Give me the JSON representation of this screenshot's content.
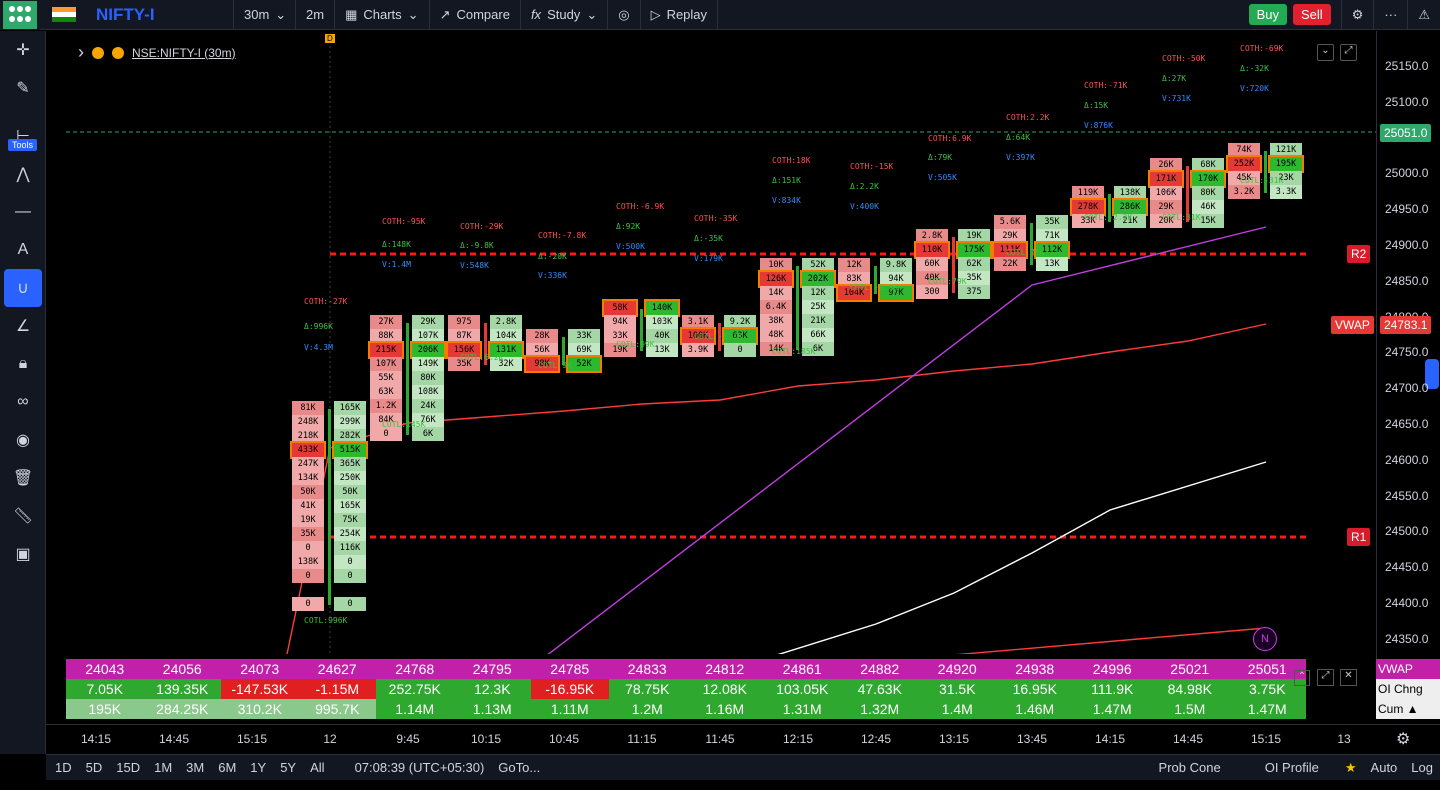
{
  "topbar": {
    "symbol": "NIFTY-I",
    "interval": "30m",
    "replay_interval": "2m",
    "charts_label": "Charts",
    "compare_label": "Compare",
    "study_label": "Study",
    "replay_label": "Replay",
    "buy_label": "Buy",
    "sell_label": "Sell"
  },
  "left_toolbar": {
    "tools_label": "Tools"
  },
  "legend": {
    "symbol_label": "NSE:NIFTY-I (30m)",
    "marker": "D"
  },
  "price_axis": {
    "labels": [
      "25150.0",
      "25100.0",
      "25050.0",
      "25000.0",
      "24950.0",
      "24900.0",
      "24850.0",
      "24800.0",
      "24750.0",
      "24700.0",
      "24650.0",
      "24600.0",
      "24550.0",
      "24500.0",
      "24450.0",
      "24400.0",
      "24350.0"
    ],
    "last_price": "25051.0",
    "vwap_tag": "VWAP",
    "vwap_price": "24783.1",
    "r2_tag": "R2",
    "r1_tag": "R1",
    "n_badge": "N"
  },
  "annotations": [
    {
      "coth": "COTH:-27K",
      "delta": "Δ:996K",
      "vol": "V:4.3M",
      "cotl": "COTL:996K"
    },
    {
      "coth": "COTH:-95K",
      "delta": "Δ:148K",
      "vol": "V:1.4M",
      "cotl": "COTL:145K"
    },
    {
      "coth": "COTH:-29K",
      "delta": "Δ:-9.8K",
      "vol": "V:548K",
      "cotl": "COTL:6.2K"
    },
    {
      "coth": "COTH:-7.8K",
      "delta": "Δ:-20K",
      "vol": "V:336K",
      "cotl": "COTL:9K"
    },
    {
      "coth": "COTH:-6.9K",
      "delta": "Δ:92K",
      "vol": "V:500K",
      "cotl": "COTL:99K"
    },
    {
      "coth": "COTH:-35K",
      "delta": "Δ:-35K",
      "vol": "V:179K",
      "cotl": "COTL:-5.1K"
    },
    {
      "coth": "COTH:18K",
      "delta": "Δ:151K",
      "vol": "V:834K",
      "cotl": "COTL:185K"
    },
    {
      "coth": "COTH:-15K",
      "delta": "Δ:2.2K",
      "vol": "V:400K",
      "cotl": "COTL:-3.1K"
    },
    {
      "coth": "COTH:6.9K",
      "delta": "Δ:79K",
      "vol": "V:505K",
      "cotl": "COTL:79K"
    },
    {
      "coth": "COTH:2.2K",
      "delta": "Δ:64K",
      "vol": "V:397K",
      "cotl": "COTL:75K"
    },
    {
      "coth": "COTH:-71K",
      "delta": "Δ:15K",
      "vol": "V:876K",
      "cotl": "COTL:-2.2K"
    },
    {
      "coth": "COTH:-50K",
      "delta": "Δ:27K",
      "vol": "V:731K",
      "cotl": "COTL:31K"
    },
    {
      "coth": "COTH:-69K",
      "delta": "Δ:-32K",
      "vol": "V:720K",
      "cotl": "COTL:-31K"
    }
  ],
  "footprints": [
    {
      "bid": [
        "81K",
        "248K",
        "218K",
        "433K",
        "247K",
        "134K",
        "50K",
        "41K",
        "19K",
        "35K",
        "0",
        "138K",
        "0",
        "",
        "0"
      ],
      "ask": [
        "165K",
        "299K",
        "282K",
        "515K",
        "365K",
        "250K",
        "50K",
        "165K",
        "75K",
        "254K",
        "116K",
        "0",
        "0",
        "",
        "0"
      ]
    },
    {
      "bid": [
        "27K",
        "88K",
        "215K",
        "107K",
        "55K",
        "63K",
        "1.2K",
        "84K",
        "0"
      ],
      "ask": [
        "29K",
        "107K",
        "206K",
        "149K",
        "80K",
        "108K",
        "24K",
        "76K",
        "6K"
      ]
    },
    {
      "bid": [
        "975",
        "87K",
        "156K",
        "35K"
      ],
      "ask": [
        "2.8K",
        "104K",
        "131K",
        "32K"
      ]
    },
    {
      "bid": [
        "28K",
        "56K",
        "98K"
      ],
      "ask": [
        "33K",
        "69K",
        "52K"
      ]
    },
    {
      "bid": [
        "58K",
        "94K",
        "33K",
        "19K"
      ],
      "ask": [
        "140K",
        "103K",
        "40K",
        "13K"
      ]
    },
    {
      "bid": [
        "3.1K",
        "100K",
        "3.9K"
      ],
      "ask": [
        "9.2K",
        "63K",
        "0"
      ]
    },
    {
      "bid": [
        "10K",
        "126K",
        "14K",
        "6.4K",
        "38K",
        "48K",
        "14K"
      ],
      "ask": [
        "52K",
        "202K",
        "12K",
        "25K",
        "21K",
        "66K",
        "6K"
      ]
    },
    {
      "bid": [
        "12K",
        "83K",
        "104K"
      ],
      "ask": [
        "9.8K",
        "94K",
        "97K"
      ]
    },
    {
      "bid": [
        "2.8K",
        "110K",
        "60K",
        "40K",
        "300"
      ],
      "ask": [
        "19K",
        "175K",
        "62K",
        "35K",
        "375"
      ]
    },
    {
      "bid": [
        "5.6K",
        "29K",
        "111K",
        "22K"
      ],
      "ask": [
        "35K",
        "71K",
        "112K",
        "13K"
      ]
    },
    {
      "bid": [
        "119K",
        "278K",
        "33K"
      ],
      "ask": [
        "138K",
        "286K",
        "21K"
      ]
    },
    {
      "bid": [
        "26K",
        "171K",
        "106K",
        "29K",
        "20K"
      ],
      "ask": [
        "68K",
        "170K",
        "80K",
        "46K",
        "15K"
      ]
    },
    {
      "bid": [
        "74K",
        "252K",
        "45K",
        "3.2K"
      ],
      "ask": [
        "121K",
        "195K",
        "23K",
        "3.3K"
      ]
    }
  ],
  "table": {
    "row1": [
      "24043",
      "24056",
      "24073",
      "24627",
      "24768",
      "24795",
      "24785",
      "24833",
      "24812",
      "24861",
      "24882",
      "24920",
      "24938",
      "24996",
      "25021",
      "25051"
    ],
    "row2": [
      "7.05K",
      "139.35K",
      "-147.53K",
      "-1.15M",
      "252.75K",
      "12.3K",
      "-16.95K",
      "78.75K",
      "12.08K",
      "103.05K",
      "47.63K",
      "31.5K",
      "16.95K",
      "111.9K",
      "84.98K",
      "3.75K"
    ],
    "row3": [
      "195K",
      "284.25K",
      "310.2K",
      "995.7K",
      "1.14M",
      "1.13M",
      "1.11M",
      "1.2M",
      "1.16M",
      "1.31M",
      "1.32M",
      "1.4M",
      "1.46M",
      "1.47M",
      "1.5M",
      "1.47M"
    ],
    "labels": [
      "VWAP",
      "OI Chng",
      "Cum ▲"
    ]
  },
  "time_axis": [
    "14:15",
    "14:45",
    "15:15",
    "12",
    "9:45",
    "10:15",
    "10:45",
    "11:15",
    "11:45",
    "12:15",
    "12:45",
    "13:15",
    "13:45",
    "14:15",
    "14:45",
    "15:15",
    "13"
  ],
  "bottombar": {
    "ranges": [
      "1D",
      "5D",
      "15D",
      "1M",
      "3M",
      "6M",
      "1Y",
      "5Y",
      "All"
    ],
    "clock": "07:08:39 (UTC+05:30)",
    "goto": "GoTo...",
    "prob_cone": "Prob Cone",
    "oi_profile": "OI Profile",
    "auto": "Auto",
    "log": "Log"
  },
  "colors": {
    "bg": "#000000",
    "toolbar": "#131722",
    "accent": "#2962ff",
    "buy": "#22ab54",
    "sell": "#e2202f",
    "r_levels": "#ff1a1a",
    "vwap_line": "#ff3b3b"
  }
}
